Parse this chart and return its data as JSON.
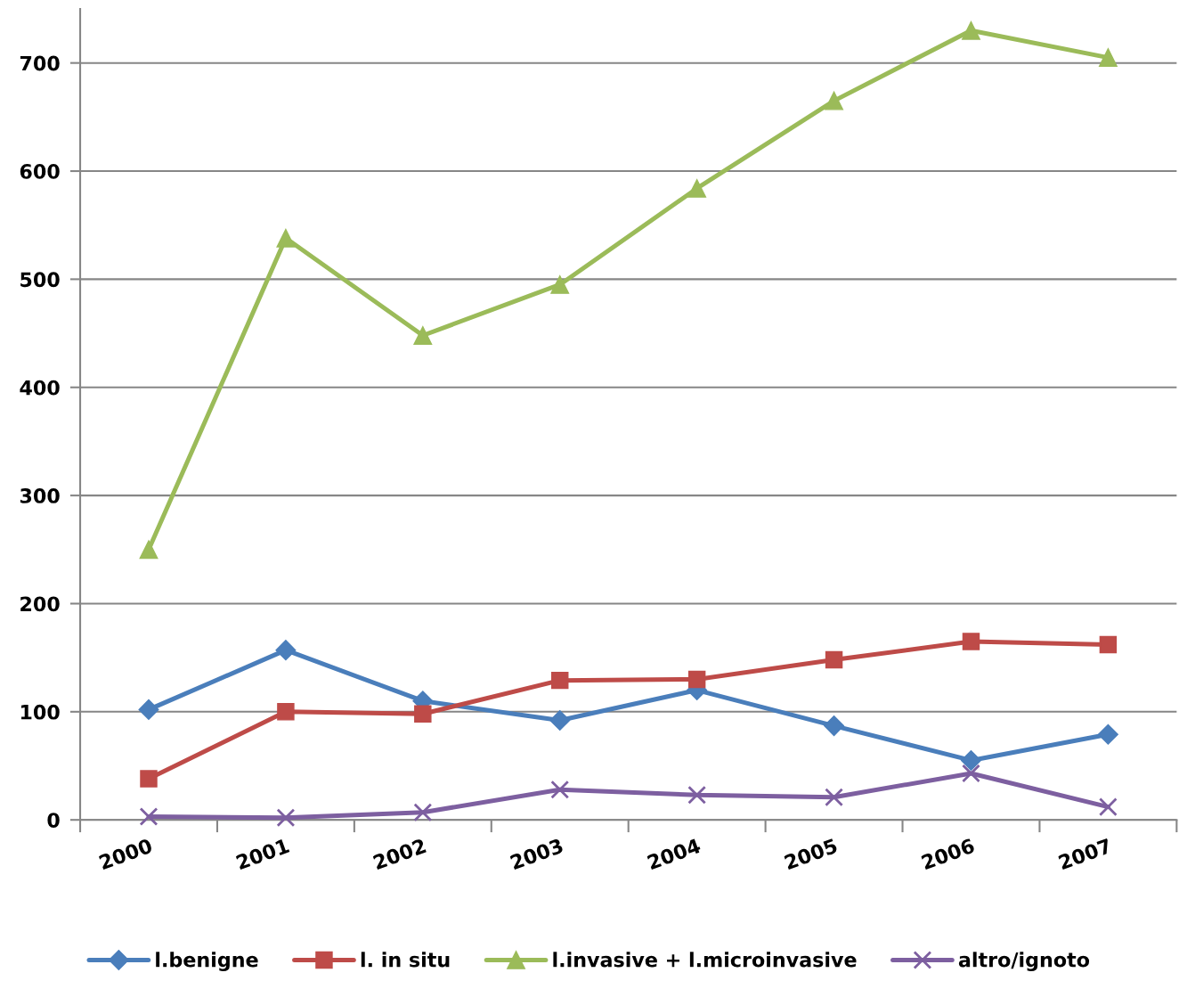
{
  "chart_data": {
    "type": "line",
    "categories": [
      "2000",
      "2001",
      "2002",
      "2003",
      "2004",
      "2005",
      "2006",
      "2007"
    ],
    "ylim": [
      0,
      750
    ],
    "yticks": [
      0,
      100,
      200,
      300,
      400,
      500,
      600,
      700
    ],
    "grid": "y",
    "legend": "bottom",
    "line_style": "solid",
    "series": [
      {
        "name": "l.benigne",
        "color": "#4a7ebb",
        "marker": "diamond",
        "values": [
          102,
          157,
          110,
          92,
          120,
          87,
          55,
          79
        ]
      },
      {
        "name": "l. in situ",
        "color": "#be4b48",
        "marker": "square",
        "values": [
          38,
          100,
          98,
          129,
          130,
          148,
          165,
          162
        ]
      },
      {
        "name": "l.invasive + l.microinvasive",
        "color": "#9bbb59",
        "marker": "triangle",
        "values": [
          250,
          538,
          448,
          495,
          584,
          665,
          730,
          705
        ]
      },
      {
        "name": "altro/ignoto",
        "color": "#7d5fa0",
        "marker": "cross",
        "values": [
          3,
          2,
          7,
          28,
          23,
          21,
          43,
          12
        ]
      }
    ]
  }
}
